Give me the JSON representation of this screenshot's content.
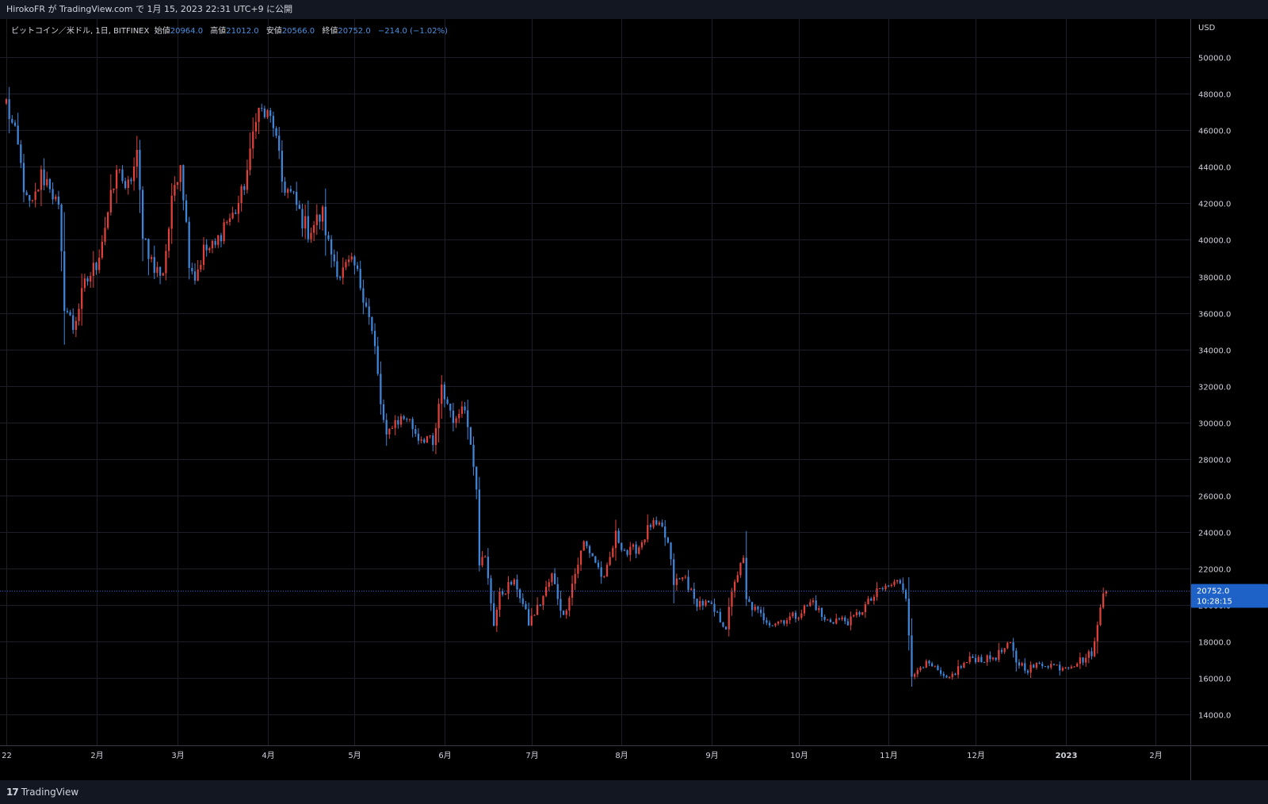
{
  "header": {
    "publish_text": "HirokoFR が TradingView.com で 1月 15, 2023 22:31 UTC+9 に公開"
  },
  "legend": {
    "symbol": "ビットコイン／米ドル, 1日, BITFINEX",
    "open_label": "始値",
    "open": "20964.0",
    "high_label": "高値",
    "high": "21012.0",
    "low_label": "安値",
    "low": "20566.0",
    "close_label": "終値",
    "close": "20752.0",
    "change": "−214.0 (−1.02%)"
  },
  "footer": {
    "brand_icon": "17",
    "brand_name": "TradingView"
  },
  "price_tag": {
    "price": "20752.0",
    "countdown": "10:28:15"
  },
  "colors": {
    "up": "#e0413a",
    "down": "#3f86d9",
    "background": "#000000",
    "grid": "#1c1f27",
    "axis_text": "#d1d4dc",
    "tag": "#1e62c8"
  },
  "chart_data": {
    "type": "candlestick",
    "currency_label": "USD",
    "y_ticks": [
      "14000.0",
      "16000.0",
      "18000.0",
      "20000.0",
      "22000.0",
      "24000.0",
      "26000.0",
      "28000.0",
      "30000.0",
      "32000.0",
      "34000.0",
      "36000.0",
      "38000.0",
      "40000.0",
      "42000.0",
      "44000.0",
      "46000.0",
      "48000.0",
      "50000.0"
    ],
    "ylim": [
      12300,
      52100
    ],
    "x_ticks": [
      {
        "label": "22",
        "date": "2022-01-01"
      },
      {
        "label": "2月",
        "date": "2022-02-01"
      },
      {
        "label": "3月",
        "date": "2022-03-01"
      },
      {
        "label": "4月",
        "date": "2022-04-01"
      },
      {
        "label": "5月",
        "date": "2022-05-01"
      },
      {
        "label": "6月",
        "date": "2022-06-01"
      },
      {
        "label": "7月",
        "date": "2022-07-01"
      },
      {
        "label": "8月",
        "date": "2022-08-01"
      },
      {
        "label": "9月",
        "date": "2022-09-01"
      },
      {
        "label": "10月",
        "date": "2022-10-01"
      },
      {
        "label": "11月",
        "date": "2022-11-01"
      },
      {
        "label": "12月",
        "date": "2022-12-01"
      },
      {
        "label": "2023",
        "date": "2023-01-01"
      },
      {
        "label": "2月",
        "date": "2023-02-01"
      }
    ],
    "xlim": [
      "2022-01-01",
      "2023-02-13"
    ],
    "last_price": 20752,
    "close_waypoints": [
      [
        "2022-01-01",
        47500
      ],
      [
        "2022-01-05",
        45000
      ],
      [
        "2022-01-08",
        42000
      ],
      [
        "2022-01-10",
        41800
      ],
      [
        "2022-01-13",
        43500
      ],
      [
        "2022-01-16",
        43100
      ],
      [
        "2022-01-19",
        41500
      ],
      [
        "2022-01-21",
        36500
      ],
      [
        "2022-01-24",
        35200
      ],
      [
        "2022-01-28",
        37500
      ],
      [
        "2022-02-01",
        38700
      ],
      [
        "2022-02-05",
        41500
      ],
      [
        "2022-02-09",
        44200
      ],
      [
        "2022-02-11",
        42400
      ],
      [
        "2022-02-15",
        44500
      ],
      [
        "2022-02-17",
        40500
      ],
      [
        "2022-02-21",
        38300
      ],
      [
        "2022-02-24",
        38300
      ],
      [
        "2022-02-28",
        43100
      ],
      [
        "2022-03-02",
        44400
      ],
      [
        "2022-03-05",
        39000
      ],
      [
        "2022-03-07",
        38000
      ],
      [
        "2022-03-10",
        39400
      ],
      [
        "2022-03-14",
        39600
      ],
      [
        "2022-03-17",
        40900
      ],
      [
        "2022-03-20",
        41300
      ],
      [
        "2022-03-23",
        42400
      ],
      [
        "2022-03-26",
        44500
      ],
      [
        "2022-03-28",
        47100
      ],
      [
        "2022-03-30",
        47000
      ],
      [
        "2022-04-03",
        46400
      ],
      [
        "2022-04-06",
        43200
      ],
      [
        "2022-04-10",
        42200
      ],
      [
        "2022-04-13",
        41100
      ],
      [
        "2022-04-15",
        40500
      ],
      [
        "2022-04-20",
        41400
      ],
      [
        "2022-04-22",
        39700
      ],
      [
        "2022-04-26",
        38100
      ],
      [
        "2022-04-29",
        38600
      ],
      [
        "2022-05-01",
        38500
      ],
      [
        "2022-05-05",
        36600
      ],
      [
        "2022-05-08",
        34000
      ],
      [
        "2022-05-10",
        31000
      ],
      [
        "2022-05-12",
        29000
      ],
      [
        "2022-05-14",
        30000
      ],
      [
        "2022-05-19",
        30300
      ],
      [
        "2022-05-23",
        29200
      ],
      [
        "2022-05-26",
        29200
      ],
      [
        "2022-05-28",
        28600
      ],
      [
        "2022-05-31",
        31800
      ],
      [
        "2022-06-05",
        29900
      ],
      [
        "2022-06-07",
        31300
      ],
      [
        "2022-06-10",
        29100
      ],
      [
        "2022-06-12",
        26600
      ],
      [
        "2022-06-13",
        22400
      ],
      [
        "2022-06-15",
        22500
      ],
      [
        "2022-06-18",
        19000
      ],
      [
        "2022-06-20",
        20500
      ],
      [
        "2022-06-24",
        21200
      ],
      [
        "2022-06-26",
        21000
      ],
      [
        "2022-06-30",
        19000
      ],
      [
        "2022-07-04",
        20100
      ],
      [
        "2022-07-08",
        21600
      ],
      [
        "2022-07-12",
        19300
      ],
      [
        "2022-07-14",
        20600
      ],
      [
        "2022-07-19",
        23400
      ],
      [
        "2022-07-22",
        22700
      ],
      [
        "2022-07-26",
        21300
      ],
      [
        "2022-07-30",
        23800
      ],
      [
        "2022-08-03",
        22800
      ],
      [
        "2022-08-07",
        23200
      ],
      [
        "2022-08-11",
        24400
      ],
      [
        "2022-08-15",
        24100
      ],
      [
        "2022-08-17",
        23300
      ],
      [
        "2022-08-19",
        21200
      ],
      [
        "2022-08-23",
        21500
      ],
      [
        "2022-08-26",
        20200
      ],
      [
        "2022-08-31",
        20000
      ],
      [
        "2022-09-06",
        18800
      ],
      [
        "2022-09-09",
        21400
      ],
      [
        "2022-09-12",
        22400
      ],
      [
        "2022-09-13",
        20200
      ],
      [
        "2022-09-18",
        19400
      ],
      [
        "2022-09-22",
        19000
      ],
      [
        "2022-09-26",
        19200
      ],
      [
        "2022-09-30",
        19400
      ],
      [
        "2022-10-06",
        20200
      ],
      [
        "2022-10-10",
        19100
      ],
      [
        "2022-10-14",
        19200
      ],
      [
        "2022-10-19",
        19100
      ],
      [
        "2022-10-25",
        20100
      ],
      [
        "2022-10-29",
        20800
      ],
      [
        "2022-11-05",
        21300
      ],
      [
        "2022-11-07",
        20600
      ],
      [
        "2022-11-08",
        18500
      ],
      [
        "2022-11-09",
        15900
      ],
      [
        "2022-11-12",
        16800
      ],
      [
        "2022-11-16",
        16600
      ],
      [
        "2022-11-21",
        15800
      ],
      [
        "2022-11-25",
        16500
      ],
      [
        "2022-11-30",
        17100
      ],
      [
        "2022-12-05",
        17000
      ],
      [
        "2022-12-08",
        17200
      ],
      [
        "2022-12-13",
        17800
      ],
      [
        "2022-12-15",
        16900
      ],
      [
        "2022-12-19",
        16500
      ],
      [
        "2022-12-25",
        16800
      ],
      [
        "2022-12-30",
        16600
      ],
      [
        "2023-01-04",
        16800
      ],
      [
        "2023-01-08",
        17100
      ],
      [
        "2023-01-10",
        17400
      ],
      [
        "2023-01-11",
        17900
      ],
      [
        "2023-01-12",
        18800
      ],
      [
        "2023-01-13",
        19900
      ],
      [
        "2023-01-14",
        20900
      ],
      [
        "2023-01-15",
        20752
      ]
    ]
  }
}
